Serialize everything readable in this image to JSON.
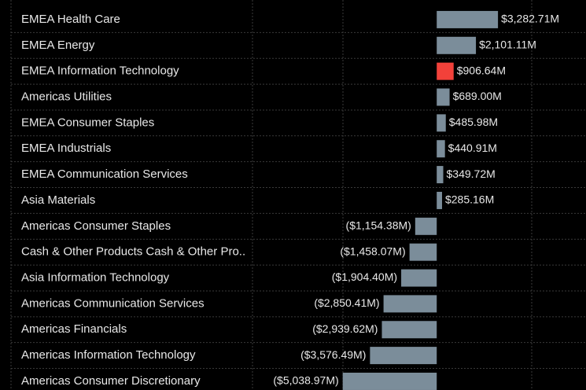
{
  "chart_data": {
    "type": "hbar",
    "categories": [
      "EMEA Health Care",
      "EMEA Energy",
      "EMEA Information Technology",
      "Americas Utilities",
      "EMEA Consumer Staples",
      "EMEA Industrials",
      "EMEA Communication Services",
      "Asia Materials",
      "Americas Consumer Staples",
      "Cash & Other Products Cash & Other Pro..",
      "Asia Information Technology",
      "Americas Communication Services",
      "Americas Financials",
      "Americas Information Technology",
      "Americas Consumer Discretionary"
    ],
    "values": [
      3282.71,
      2101.11,
      906.64,
      689.0,
      485.98,
      440.91,
      349.72,
      285.16,
      -1154.38,
      -1458.07,
      -1904.4,
      -2850.41,
      -2939.62,
      -3576.49,
      -5038.97
    ],
    "value_labels": [
      "$3,282.71M",
      "$2,101.11M",
      "$906.64M",
      "$689.00M",
      "$485.98M",
      "$440.91M",
      "$349.72M",
      "$285.16M",
      "($1,154.38M)",
      "($1,458.07M)",
      "($1,904.40M)",
      "($2,850.41M)",
      "($2,939.62M)",
      "($3,576.49M)",
      "($5,038.97M)"
    ],
    "colors": [
      "#7b8d9a",
      "#7b8d9a",
      "#f2413a",
      "#7b8d9a",
      "#7b8d9a",
      "#7b8d9a",
      "#7b8d9a",
      "#7b8d9a",
      "#7b8d9a",
      "#7b8d9a",
      "#7b8d9a",
      "#7b8d9a",
      "#7b8d9a",
      "#7b8d9a",
      "#7b8d9a"
    ],
    "xlim": [
      -10000,
      8000
    ]
  }
}
